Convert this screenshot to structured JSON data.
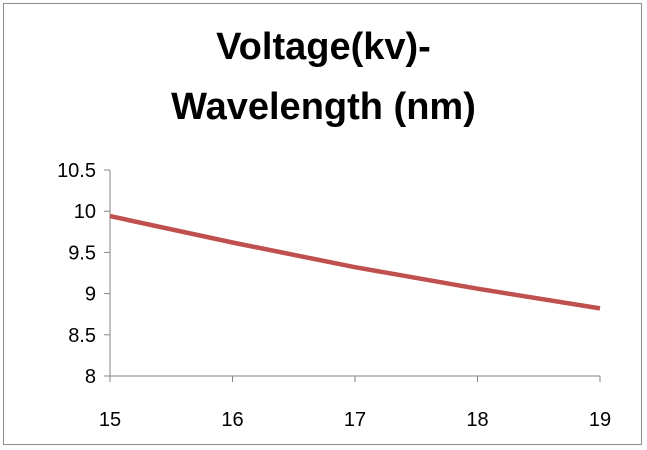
{
  "chart_data": {
    "type": "line",
    "title_lines": [
      "Voltage(kv)-",
      "Wavelength (nm)"
    ],
    "xlabel": "",
    "ylabel": "",
    "x_ticks": [
      "15",
      "16",
      "17",
      "18",
      "19"
    ],
    "y_ticks": [
      "8",
      "8.5",
      "9",
      "9.5",
      "10",
      "10.5"
    ],
    "xlim": [
      15,
      19
    ],
    "ylim": [
      8,
      10.5
    ],
    "grid": false,
    "legend": "none",
    "series": [
      {
        "color": "#c0504d",
        "x": [
          15,
          16,
          17,
          18,
          19
        ],
        "y": [
          9.94,
          9.62,
          9.32,
          9.06,
          8.82
        ]
      }
    ]
  }
}
